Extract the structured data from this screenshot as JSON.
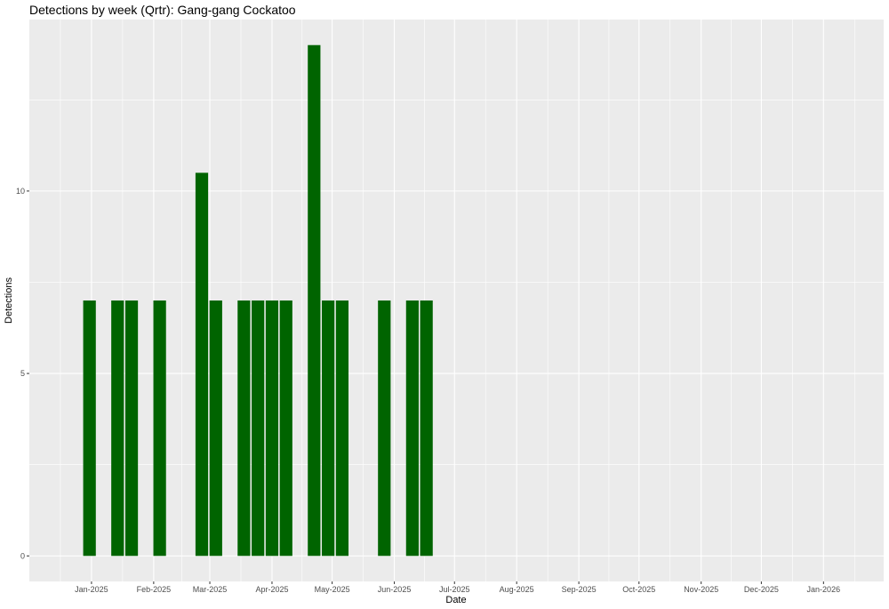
{
  "chart_data": {
    "type": "bar",
    "title": "Detections by week (Qrtr): Gang-gang Cockatoo",
    "xlabel": "Date",
    "ylabel": "Detections",
    "bar_color": "#006400",
    "panel_color": "#EBEBEB",
    "grid": true,
    "x_type": "date",
    "xlim": [
      "2024-12-01",
      "2026-01-31"
    ],
    "ylim": [
      -0.7,
      14.7
    ],
    "yticks": [
      0,
      5,
      10
    ],
    "ytick_labels": [
      "0",
      "5",
      "10"
    ],
    "xticks": [
      "2025-01-01",
      "2025-02-01",
      "2025-03-01",
      "2025-04-01",
      "2025-05-01",
      "2025-06-01",
      "2025-07-01",
      "2025-08-01",
      "2025-09-01",
      "2025-10-01",
      "2025-11-01",
      "2025-12-01",
      "2026-01-01"
    ],
    "xtick_labels": [
      "Jan-2025",
      "Feb-2025",
      "Mar-2025",
      "Apr-2025",
      "May-2025",
      "Jun-2025",
      "Jul-2025",
      "Aug-2025",
      "Sep-2025",
      "Oct-2025",
      "Nov-2025",
      "Dec-2025",
      "Jan-2026"
    ],
    "bar_width_days": 6.3,
    "x": [
      "2024-12-31",
      "2025-01-14",
      "2025-01-21",
      "2025-02-04",
      "2025-02-25",
      "2025-03-04",
      "2025-03-18",
      "2025-03-25",
      "2025-04-01",
      "2025-04-08",
      "2025-04-22",
      "2025-04-29",
      "2025-05-06",
      "2025-05-27",
      "2025-06-10",
      "2025-06-17"
    ],
    "values": [
      7,
      7,
      7,
      7,
      10.5,
      7,
      7,
      7,
      7,
      7,
      14,
      7,
      7,
      7,
      7,
      7
    ]
  }
}
